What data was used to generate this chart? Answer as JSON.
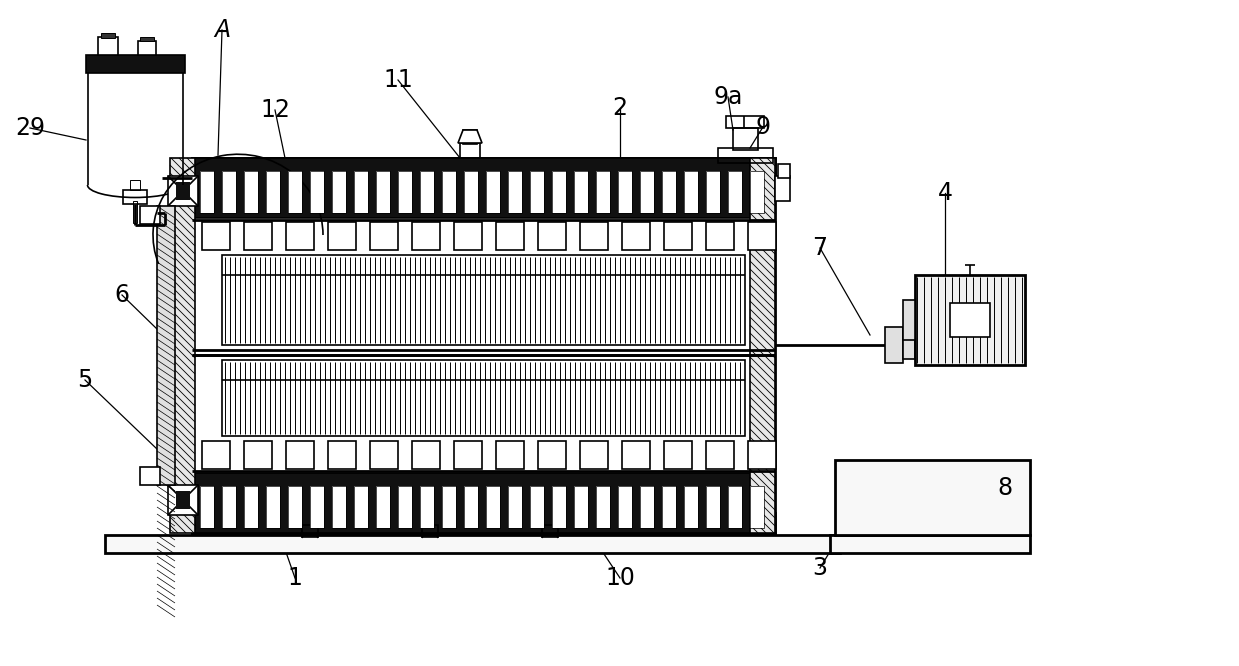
{
  "bg_color": "#ffffff",
  "line_color": "#000000",
  "figsize": [
    12.39,
    6.66
  ],
  "dpi": 100,
  "label_fontsize": 17
}
